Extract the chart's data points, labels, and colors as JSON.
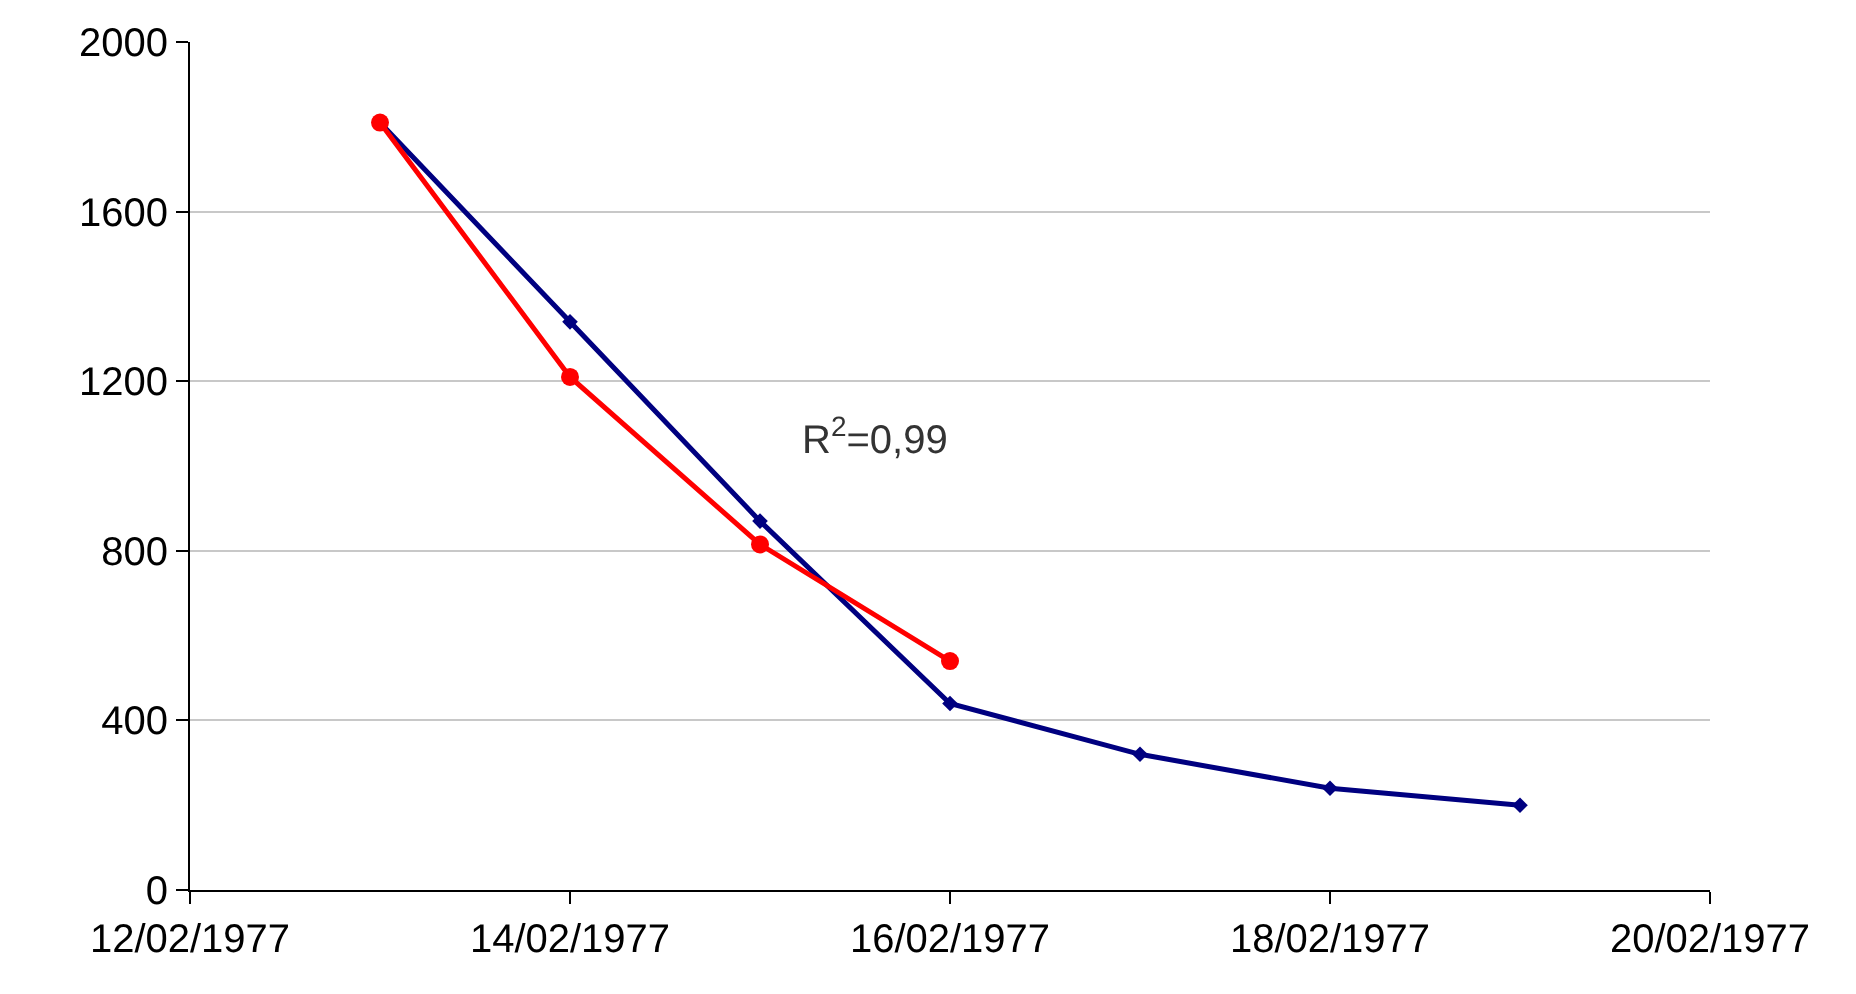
{
  "chart_data": {
    "type": "line",
    "x": [
      "1977-02-13",
      "1977-02-14",
      "1977-02-15",
      "1977-02-16",
      "1977-02-17",
      "1977-02-18",
      "1977-02-19"
    ],
    "series": [
      {
        "color": "#000080",
        "marker": "diamond",
        "values": [
          1810,
          1340,
          870,
          440,
          320,
          240,
          200
        ]
      },
      {
        "color": "#ff0000",
        "marker": "circle",
        "values": [
          1810,
          1210,
          815,
          540,
          null,
          null,
          null
        ]
      }
    ],
    "xlim": [
      "1977-02-12",
      "1977-02-20"
    ],
    "xticks": [
      {
        "value": "1977-02-12",
        "label": "12/02/1977"
      },
      {
        "value": "1977-02-14",
        "label": "14/02/1977"
      },
      {
        "value": "1977-02-16",
        "label": "16/02/1977"
      },
      {
        "value": "1977-02-18",
        "label": "18/02/1977"
      },
      {
        "value": "1977-02-20",
        "label": "20/02/1977"
      }
    ],
    "ylim": [
      0,
      2000
    ],
    "yticks": [
      0,
      400,
      800,
      1200,
      1600,
      2000
    ],
    "grid": "y",
    "annotations": [
      "R$^{2}$=0,99"
    ]
  }
}
